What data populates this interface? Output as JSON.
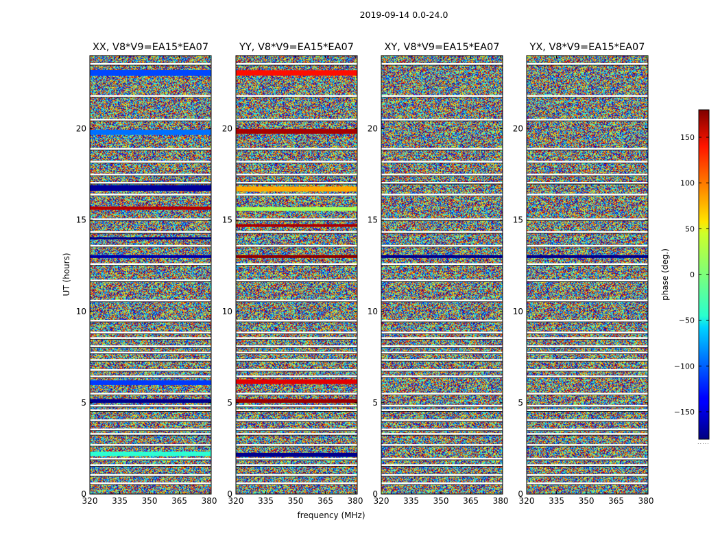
{
  "chart_data": {
    "type": "heatmap",
    "suptitle": "2019-09-14 0.0-24.0",
    "xlabel": "frequency (MHz)",
    "ylabel": "UT (hours)",
    "xlim": [
      320,
      381
    ],
    "ylim": [
      0,
      24
    ],
    "xticks": [
      "320",
      "335",
      "350",
      "365",
      "380"
    ],
    "yticks": [
      "0",
      "5",
      "10",
      "15",
      "20"
    ],
    "colorbar": {
      "label": "phase (deg.)",
      "range": [
        -180,
        180
      ],
      "ticks": [
        "150",
        "100",
        "50",
        "0",
        "−50",
        "−100",
        "−150"
      ],
      "colormap": "jet"
    },
    "panels": [
      {
        "title": "XX, V8*V9=EA15*EA07",
        "bands": [
          {
            "t": 23.05,
            "h": 0.32,
            "phase": -110
          },
          {
            "t": 19.8,
            "h": 0.28,
            "phase": -95
          },
          {
            "t": 16.75,
            "h": 0.3,
            "phase": -170
          },
          {
            "t": 15.65,
            "h": 0.18,
            "phase": 160
          },
          {
            "t": 14.0,
            "h": 0.12,
            "phase": -175
          },
          {
            "t": 13.0,
            "h": 0.15,
            "phase": -165
          },
          {
            "t": 6.1,
            "h": 0.25,
            "phase": -115
          },
          {
            "t": 5.1,
            "h": 0.2,
            "phase": -175
          },
          {
            "t": 2.2,
            "h": 0.25,
            "phase": -30
          }
        ]
      },
      {
        "title": "YY, V8*V9=EA15*EA07",
        "bands": [
          {
            "t": 23.05,
            "h": 0.3,
            "phase": 130
          },
          {
            "t": 19.85,
            "h": 0.25,
            "phase": 165
          },
          {
            "t": 16.7,
            "h": 0.28,
            "phase": 75
          },
          {
            "t": 15.6,
            "h": 0.2,
            "phase": 15
          },
          {
            "t": 14.7,
            "h": 0.15,
            "phase": 165
          },
          {
            "t": 13.0,
            "h": 0.15,
            "phase": 175
          },
          {
            "t": 6.15,
            "h": 0.25,
            "phase": 145
          },
          {
            "t": 5.1,
            "h": 0.2,
            "phase": 170
          },
          {
            "t": 2.15,
            "h": 0.22,
            "phase": -175
          }
        ]
      },
      {
        "title": "XY, V8*V9=EA15*EA07",
        "bands": [
          {
            "t": 13.0,
            "h": 0.15,
            "phase": -175
          }
        ]
      },
      {
        "title": "YX, V8*V9=EA15*EA07",
        "bands": [
          {
            "t": 13.0,
            "h": 0.15,
            "phase": -175
          }
        ]
      }
    ],
    "gaps_hours": [
      23.55,
      21.8,
      20.5,
      18.9,
      18.2,
      17.5,
      17.05,
      16.4,
      15.05,
      14.35,
      13.6,
      12.6,
      11.7,
      10.6,
      9.5,
      8.85,
      8.55,
      8.1,
      7.75,
      7.35,
      6.8,
      6.45,
      5.5,
      4.85,
      4.6,
      4.05,
      3.55,
      3.3,
      2.7,
      1.95,
      1.6,
      1.05,
      0.6
    ]
  }
}
